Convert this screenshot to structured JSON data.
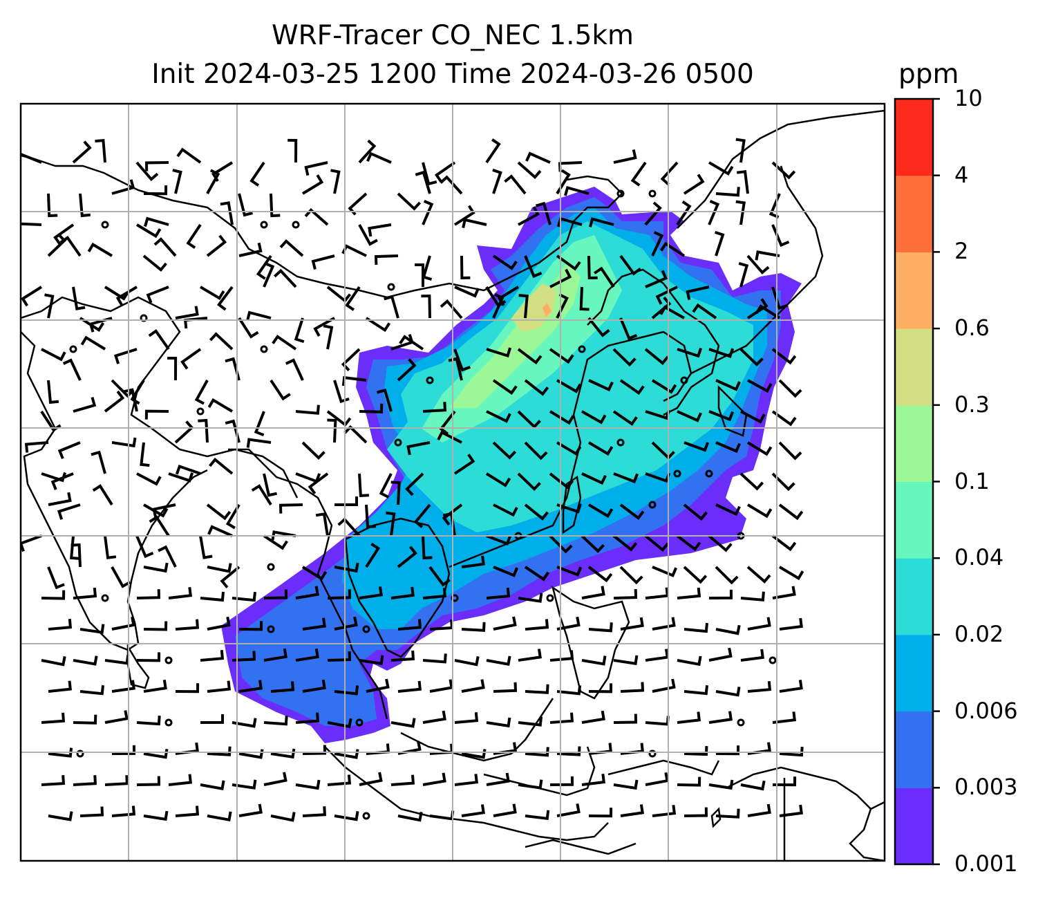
{
  "title": {
    "line1": "WRF-Tracer CO_NEC 1.5km",
    "line2": "Init 2024-03-25 1200 Time 2024-03-26 0500"
  },
  "colorbar": {
    "units": "ppm",
    "ticks": [
      "0.001",
      "0.003",
      "0.006",
      "0.02",
      "0.04",
      "0.1",
      "0.3",
      "0.6",
      "2",
      "4",
      "10"
    ],
    "colors": [
      "#6a2dfa",
      "#3272f0",
      "#00aeea",
      "#2ddcd7",
      "#67f7be",
      "#9cf896",
      "#d1de82",
      "#fdaf63",
      "#fe6f3a",
      "#fe2a1b"
    ]
  },
  "map": {
    "grid": true,
    "field": "CO_NEC tracer concentration",
    "overlay": "wind barbs",
    "coastlines": true
  }
}
